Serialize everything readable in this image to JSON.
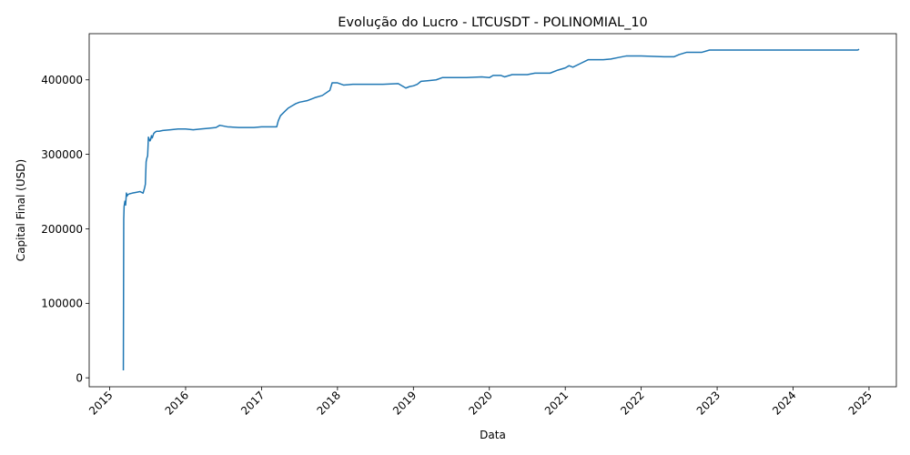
{
  "chart_data": {
    "type": "line",
    "title": "Evolução do Lucro - LTCUSDT - POLINOMIAL_10",
    "xlabel": "Data",
    "ylabel": "Capital Final (USD)",
    "xlim": [
      2014.73,
      2025.36
    ],
    "ylim": [
      -12000,
      462000
    ],
    "x_ticks": [
      "2015",
      "2016",
      "2017",
      "2018",
      "2019",
      "2020",
      "2021",
      "2022",
      "2023",
      "2024",
      "2025"
    ],
    "y_ticks": [
      "0",
      "100000",
      "200000",
      "300000",
      "400000"
    ],
    "grid": false,
    "legend": "none",
    "line_color": "#1f77b4",
    "series": [
      {
        "x": [
          2015.18,
          2015.185,
          2015.19,
          2015.2,
          2015.21,
          2015.22,
          2015.23,
          2015.24,
          2015.26,
          2015.3,
          2015.35,
          2015.4,
          2015.44,
          2015.46,
          2015.47,
          2015.48,
          2015.49,
          2015.5,
          2015.51,
          2015.53,
          2015.54,
          2015.55,
          2015.56,
          2015.58,
          2015.6,
          2015.62,
          2015.65,
          2015.7,
          2015.8,
          2015.9,
          2016.0,
          2016.1,
          2016.2,
          2016.3,
          2016.4,
          2016.45,
          2016.55,
          2016.7,
          2016.9,
          2017.0,
          2017.1,
          2017.2,
          2017.22,
          2017.25,
          2017.3,
          2017.35,
          2017.4,
          2017.45,
          2017.5,
          2017.6,
          2017.7,
          2017.8,
          2017.9,
          2017.93,
          2018.0,
          2018.08,
          2018.2,
          2018.4,
          2018.6,
          2018.8,
          2018.9,
          2018.95,
          2019.0,
          2019.05,
          2019.1,
          2019.2,
          2019.3,
          2019.38,
          2019.5,
          2019.7,
          2019.9,
          2020.0,
          2020.05,
          2020.15,
          2020.2,
          2020.3,
          2020.5,
          2020.6,
          2020.8,
          2020.9,
          2021.0,
          2021.05,
          2021.1,
          2021.2,
          2021.3,
          2021.5,
          2021.6,
          2021.7,
          2021.8,
          2022.0,
          2022.3,
          2022.43,
          2022.5,
          2022.6,
          2022.8,
          2022.9,
          2023.5,
          2024.0,
          2024.5,
          2024.85,
          2024.87
        ],
        "values": [
          10000,
          213000,
          230000,
          237000,
          232000,
          248000,
          244000,
          246000,
          247000,
          248000,
          249000,
          250000,
          248000,
          255000,
          260000,
          290000,
          295000,
          298000,
          323000,
          318000,
          320000,
          325000,
          322000,
          328000,
          330000,
          331000,
          331000,
          332000,
          333000,
          334000,
          334000,
          333000,
          334000,
          335000,
          336000,
          339000,
          337000,
          336000,
          336000,
          337000,
          337000,
          337000,
          345000,
          352000,
          357000,
          362000,
          365000,
          368000,
          370000,
          372000,
          376000,
          379000,
          386000,
          396000,
          396000,
          393000,
          394000,
          394000,
          394000,
          395000,
          389000,
          391000,
          392000,
          394000,
          398000,
          399000,
          400000,
          403000,
          403000,
          403000,
          404000,
          403000,
          406000,
          406000,
          404000,
          407000,
          407000,
          409000,
          409000,
          413000,
          416000,
          419000,
          417000,
          422000,
          427000,
          427000,
          428000,
          430000,
          432000,
          432000,
          431000,
          431000,
          434000,
          437000,
          437000,
          440000,
          440000,
          440000,
          440000,
          440000,
          441000
        ]
      }
    ]
  }
}
